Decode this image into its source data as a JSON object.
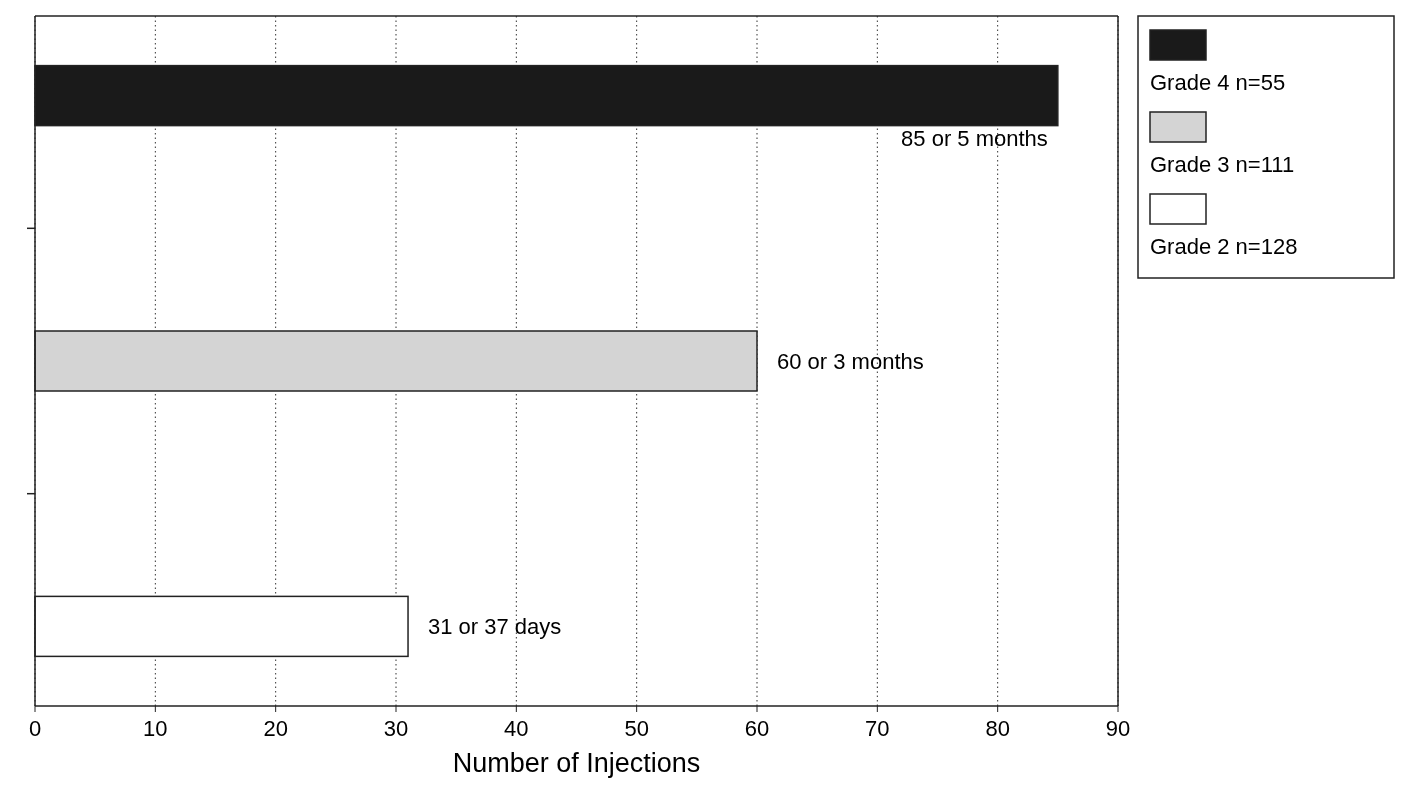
{
  "chart_data": {
    "type": "bar",
    "orientation": "horizontal",
    "xlabel": "Number of Injections",
    "categories": [
      null,
      null,
      null
    ],
    "series": [
      {
        "name": "Grade 4   n=55",
        "color": "#1a1a1a",
        "values": [
          85,
          null,
          null
        ],
        "value_labels": [
          "85 or 5 months",
          null,
          null
        ]
      },
      {
        "name": "Grade 3   n=111",
        "color": "#d4d4d4",
        "values": [
          null,
          60,
          null
        ],
        "value_labels": [
          null,
          "60 or 3 months",
          null
        ]
      },
      {
        "name": "Grade 2   n=128",
        "color": "#ffffff",
        "values": [
          null,
          null,
          31
        ],
        "value_labels": [
          null,
          null,
          "31 or 37 days"
        ]
      }
    ],
    "xlim": [
      0,
      90
    ],
    "xticks": [
      0,
      10,
      20,
      30,
      40,
      50,
      60,
      70,
      80,
      90
    ],
    "grid": "x",
    "legend": "top right"
  }
}
